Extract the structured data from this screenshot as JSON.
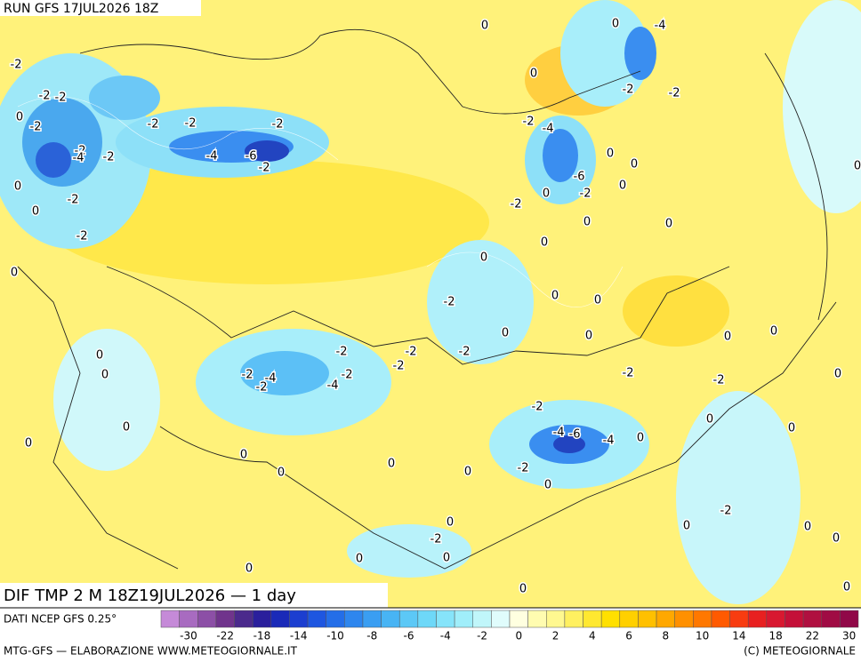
{
  "header": {
    "run": "RUN GFS 17JUL2026 18Z"
  },
  "map": {
    "title": "DIF TMP 2 M 18Z19JUL2026 — 1 day",
    "contour_labels": [
      -2,
      -2,
      -2,
      0,
      -2,
      -2,
      -4,
      -2,
      -2,
      -2,
      -4,
      -6,
      -2,
      -2,
      0,
      0,
      -2,
      -2,
      0,
      0,
      -4,
      0,
      0,
      -2,
      -2,
      -2,
      -4,
      0,
      0,
      -6,
      -2,
      0,
      0,
      -2,
      0,
      0,
      0,
      0,
      0,
      0,
      -2,
      0,
      0,
      0,
      0,
      -2,
      -2,
      -2,
      -2,
      -2,
      -4,
      -2,
      -2,
      -4,
      0,
      0,
      -2,
      -2,
      0,
      -2,
      -4,
      -6,
      -4,
      0,
      0,
      0,
      0,
      0,
      0,
      0,
      0,
      0,
      -2,
      0,
      -2,
      0,
      0,
      -2,
      0,
      0,
      0,
      0,
      0,
      0,
      0,
      0
    ]
  },
  "legend": {
    "source": "DATI NCEP GFS 0.25°",
    "colors": [
      "#c58ad8",
      "#a86bc0",
      "#8c4fa6",
      "#70348c",
      "#4b2a8c",
      "#2a1f9c",
      "#1a2ab8",
      "#1c3ed0",
      "#1e56e0",
      "#246ee8",
      "#2e86ee",
      "#3a9ef2",
      "#48b4f4",
      "#5cc8f6",
      "#6ed8f8",
      "#86e4fa",
      "#a0eefa",
      "#c0f6fa",
      "#e0fcfc",
      "#ffffe0",
      "#fffcb0",
      "#fff890",
      "#fff060",
      "#ffe830",
      "#ffe000",
      "#ffd000",
      "#ffc000",
      "#ffa800",
      "#ff9000",
      "#ff7800",
      "#ff5a00",
      "#f83c10",
      "#e82020",
      "#d81830",
      "#c41038",
      "#b01040",
      "#a00c44",
      "#900848"
    ],
    "ticks": [
      -30,
      -22,
      -18,
      -14,
      -10,
      -8,
      -6,
      -4,
      -2,
      0,
      2,
      4,
      6,
      8,
      10,
      14,
      18,
      22,
      30
    ]
  },
  "footer": {
    "left": "MTG-GFS — ELABORAZIONE WWW.METEOGIORNALE.IT",
    "right": "(C) METEOGIORNALE"
  }
}
